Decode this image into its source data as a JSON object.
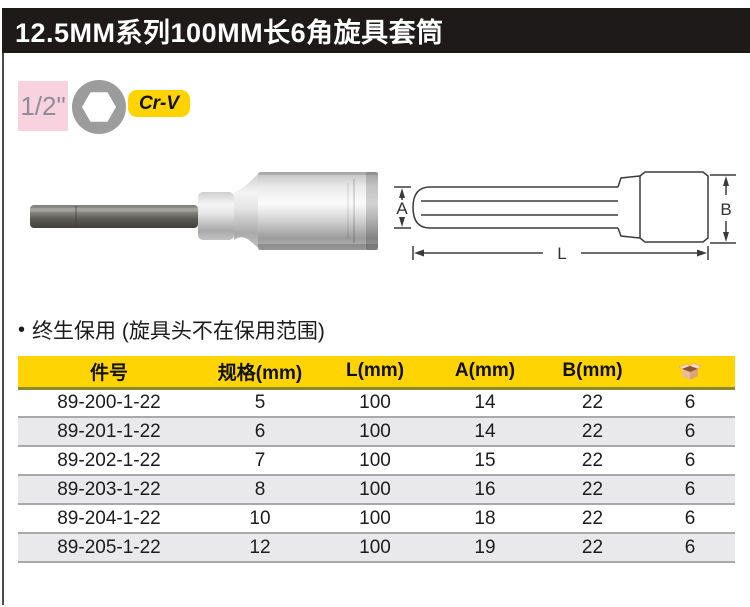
{
  "header": {
    "title": "12.5MM系列100MM长6角旋具套筒"
  },
  "badges": {
    "drive_size": "1/2\"",
    "drive_shape_icon": "hexagon-socket-icon",
    "material": "Cr-V"
  },
  "figure": {
    "photo_alt": "hex-bit-socket-photo",
    "diagram_labels": {
      "a": "A",
      "b": "B",
      "l": "L"
    }
  },
  "warranty": {
    "bullet": "•",
    "text": "终生保用 (旋具头不在保用范围)"
  },
  "table": {
    "headers": [
      "件号",
      "规格(mm)",
      "L(mm)",
      "A(mm)",
      "B(mm)"
    ],
    "pack_column_icon": "package-box-icon",
    "rows": [
      [
        "89-200-1-22",
        "5",
        "100",
        "14",
        "22",
        "6"
      ],
      [
        "89-201-1-22",
        "6",
        "100",
        "14",
        "22",
        "6"
      ],
      [
        "89-202-1-22",
        "7",
        "100",
        "15",
        "22",
        "6"
      ],
      [
        "89-203-1-22",
        "8",
        "100",
        "16",
        "22",
        "6"
      ],
      [
        "89-204-1-22",
        "10",
        "100",
        "18",
        "22",
        "6"
      ],
      [
        "89-205-1-22",
        "12",
        "100",
        "19",
        "22",
        "6"
      ]
    ]
  },
  "colors": {
    "accent_yellow": "#FFD400",
    "header_rule_olive": "#8B8B2E",
    "badge_pink": "#F8D2DF",
    "title_bar_black": "#1D1A19",
    "row_alt_gray": "#E9E9EC",
    "row_border_gray": "#A9A9A9"
  }
}
